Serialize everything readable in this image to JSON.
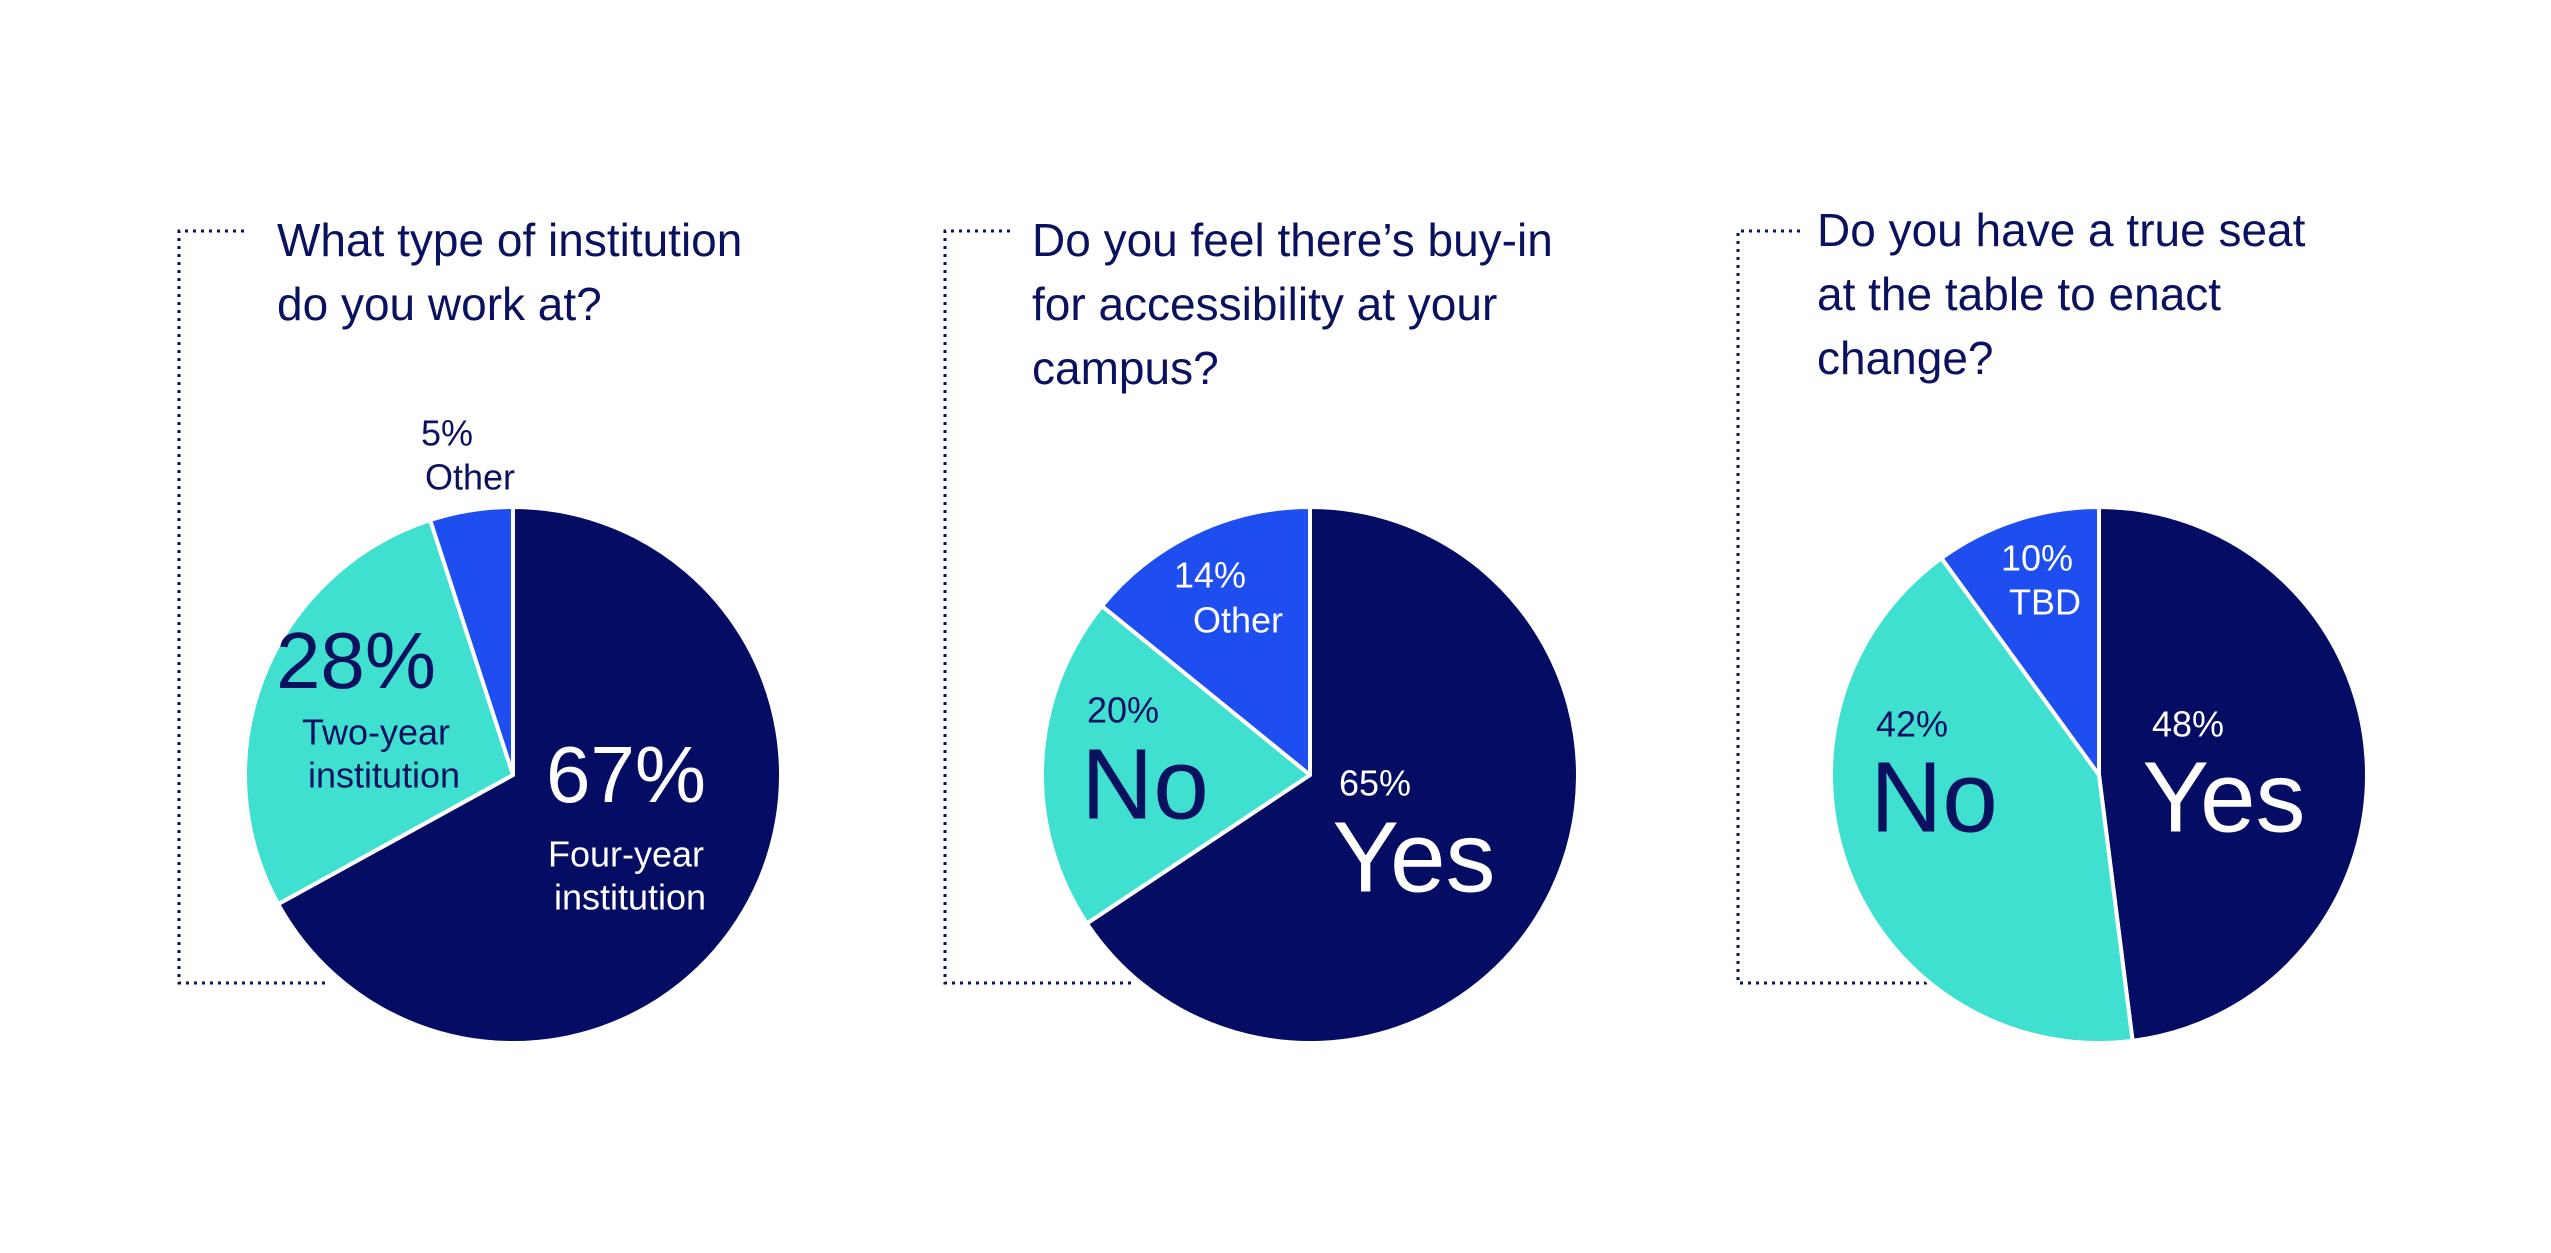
{
  "colors": {
    "dark": "#050c63",
    "teal": "#40e0d0",
    "blue": "#1f4ef0",
    "text": "#0a1260",
    "white": "#ffffff"
  },
  "chart_data": [
    {
      "type": "pie",
      "title": [
        "What type of institution",
        "do you work at?"
      ],
      "slices": [
        {
          "label": [
            "Four-year",
            "institution"
          ],
          "value": 67,
          "value_label": "67%",
          "color": "#050c63"
        },
        {
          "label": [
            "Two-year",
            "institution"
          ],
          "value": 28,
          "value_label": "28%",
          "color": "#40e0d0"
        },
        {
          "label": [
            "Other"
          ],
          "value": 5,
          "value_label": "5%",
          "color": "#1f4ef0"
        }
      ],
      "start": "top",
      "direction": "clockwise"
    },
    {
      "type": "pie",
      "title": [
        "Do you feel there’s buy-in",
        "for accessibility at your",
        "campus?"
      ],
      "slices": [
        {
          "label": [
            "Yes"
          ],
          "value": 65,
          "value_label": "65%",
          "color": "#050c63"
        },
        {
          "label": [
            "No"
          ],
          "value": 20,
          "value_label": "20%",
          "color": "#40e0d0"
        },
        {
          "label": [
            "Other"
          ],
          "value": 14,
          "value_label": "14%",
          "color": "#1f4ef0"
        }
      ],
      "start": "top",
      "direction": "clockwise"
    },
    {
      "type": "pie",
      "title": [
        "Do you have a true seat",
        "at the table to enact",
        "change?"
      ],
      "slices": [
        {
          "label": [
            "Yes"
          ],
          "value": 48,
          "value_label": "48%",
          "color": "#050c63"
        },
        {
          "label": [
            "No"
          ],
          "value": 42,
          "value_label": "42%",
          "color": "#40e0d0"
        },
        {
          "label": [
            "TBD"
          ],
          "value": 10,
          "value_label": "10%",
          "color": "#1f4ef0"
        }
      ],
      "start": "top",
      "direction": "clockwise"
    }
  ]
}
